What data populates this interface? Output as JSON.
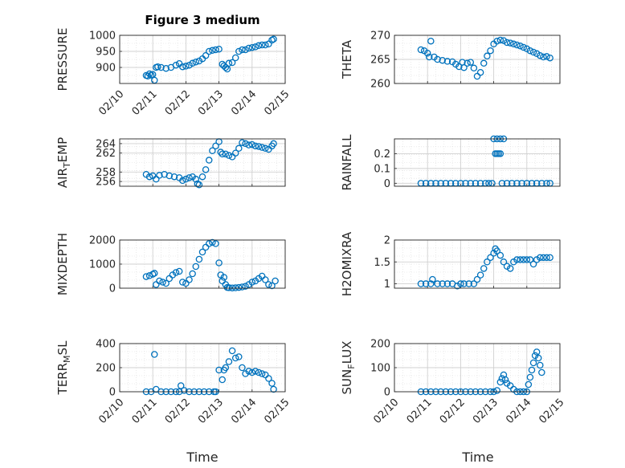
{
  "figure": {
    "title": "Figure 3 medium",
    "xlabel": "Time"
  },
  "chart_data": [
    {
      "type": "scatter",
      "ylabel_main": "PRESSURE",
      "ylabel_sub": "",
      "ylabel_tail": "",
      "ylim": [
        850,
        1000
      ],
      "yticks": [
        "900",
        "950",
        "1000"
      ],
      "ytick_values": [
        900,
        950,
        1000
      ],
      "xlim": [
        10,
        15
      ],
      "xticks": [
        "02/10",
        "02/11",
        "02/12",
        "02/13",
        "02/14",
        "02/15"
      ],
      "grid": true,
      "title": "Figure 3 medium",
      "series": [
        {
          "x": [
            10.8,
            10.85,
            10.9,
            10.95,
            11.0,
            11.05,
            11.1,
            11.15,
            11.25,
            11.4,
            11.55,
            11.7,
            11.8,
            11.9,
            12.0,
            12.1,
            12.2,
            12.3,
            12.4,
            12.5,
            12.6,
            12.7,
            12.8,
            12.9,
            13.0,
            13.1,
            13.15,
            13.2,
            13.25,
            13.3,
            13.4,
            13.5,
            13.6,
            13.7,
            13.8,
            13.9,
            14.0,
            14.1,
            14.2,
            14.3,
            14.4,
            14.5,
            14.6,
            14.65
          ],
          "y": [
            875,
            873,
            880,
            876,
            878,
            860,
            900,
            902,
            900,
            897,
            900,
            907,
            912,
            902,
            904,
            907,
            913,
            917,
            920,
            927,
            937,
            950,
            953,
            955,
            957,
            910,
            905,
            900,
            895,
            913,
            915,
            930,
            950,
            955,
            955,
            960,
            962,
            964,
            968,
            970,
            970,
            973,
            985,
            988
          ]
        }
      ]
    },
    {
      "type": "scatter",
      "ylabel_main": "THETA",
      "ylabel_sub": "",
      "ylabel_tail": "",
      "ylim": [
        260,
        270
      ],
      "yticks": [
        "260",
        "265",
        "270"
      ],
      "ytick_values": [
        260,
        265,
        270
      ],
      "xlim": [
        10,
        15
      ],
      "grid": true,
      "series": [
        {
          "x": [
            10.8,
            10.9,
            11.0,
            11.05,
            11.1,
            11.2,
            11.3,
            11.45,
            11.6,
            11.75,
            11.85,
            11.95,
            12.05,
            12.1,
            12.2,
            12.3,
            12.4,
            12.5,
            12.6,
            12.7,
            12.8,
            12.9,
            13.0,
            13.1,
            13.2,
            13.3,
            13.4,
            13.5,
            13.6,
            13.7,
            13.8,
            13.9,
            14.0,
            14.1,
            14.2,
            14.3,
            14.4,
            14.5,
            14.6,
            14.7
          ],
          "y": [
            267,
            266.8,
            266.3,
            265.5,
            268.8,
            265.5,
            265,
            264.8,
            264.6,
            264.5,
            264,
            263.5,
            264.4,
            263.3,
            264.2,
            264.4,
            263.2,
            261.5,
            262.3,
            264.2,
            265.7,
            266.8,
            268.2,
            268.8,
            269,
            268.9,
            268.5,
            268.4,
            268.2,
            268,
            267.8,
            267.5,
            267.2,
            266.8,
            266.5,
            266.2,
            265.8,
            265.5,
            265.6,
            265.3
          ]
        }
      ]
    },
    {
      "type": "scatter",
      "ylabel_main": "AIR",
      "ylabel_sub": "T",
      "ylabel_tail": "EMP",
      "ylim": [
        255,
        265
      ],
      "yticks": [
        "256",
        "258",
        "262",
        "264"
      ],
      "ytick_values": [
        256,
        258,
        262,
        264
      ],
      "xlim": [
        10,
        15
      ],
      "grid": true,
      "series": [
        {
          "x": [
            10.8,
            10.9,
            11.0,
            11.1,
            11.2,
            11.35,
            11.5,
            11.65,
            11.8,
            11.9,
            12.0,
            12.1,
            12.2,
            12.3,
            12.35,
            12.4,
            12.5,
            12.6,
            12.7,
            12.8,
            12.9,
            13.0,
            13.05,
            13.1,
            13.2,
            13.3,
            13.4,
            13.5,
            13.6,
            13.7,
            13.8,
            13.9,
            14.0,
            14.1,
            14.2,
            14.3,
            14.4,
            14.5,
            14.6,
            14.65
          ],
          "y": [
            257.5,
            257,
            257.2,
            256.5,
            257.3,
            257.5,
            257.2,
            257,
            256.8,
            256.2,
            256.5,
            256.8,
            257,
            256.5,
            255.5,
            255.3,
            257,
            258.5,
            260.5,
            262.5,
            263.5,
            264.4,
            262.2,
            261.8,
            261.8,
            261.5,
            261.2,
            262,
            263,
            264.2,
            264,
            263.7,
            263.8,
            263.5,
            263.4,
            263.2,
            263,
            262.8,
            263.5,
            264
          ]
        }
      ]
    },
    {
      "type": "scatter",
      "ylabel_main": "RAINFALL",
      "ylabel_sub": "",
      "ylabel_tail": "",
      "ylim": [
        -0.02,
        0.3
      ],
      "yticks": [
        "0",
        "0.1",
        "0.2"
      ],
      "ytick_values": [
        0,
        0.1,
        0.2
      ],
      "xlim": [
        10,
        15
      ],
      "grid": true,
      "series": [
        {
          "x": [
            10.8,
            10.95,
            11.1,
            11.25,
            11.4,
            11.55,
            11.7,
            11.85,
            12.0,
            12.15,
            12.3,
            12.45,
            12.6,
            12.75,
            12.85,
            12.95,
            13.0,
            13.05,
            13.1,
            13.1,
            13.15,
            13.2,
            13.2,
            13.25,
            13.3,
            13.4,
            13.55,
            13.7,
            13.85,
            14.0,
            14.15,
            14.3,
            14.45,
            14.6,
            14.7
          ],
          "y": [
            0,
            0,
            0,
            0,
            0,
            0,
            0,
            0,
            0,
            0,
            0,
            0,
            0,
            0,
            0,
            0,
            0.3,
            0.2,
            0.2,
            0.3,
            0.2,
            0.3,
            0.2,
            0,
            0.3,
            0,
            0,
            0,
            0,
            0,
            0,
            0,
            0,
            0,
            0
          ]
        }
      ]
    },
    {
      "type": "scatter",
      "ylabel_main": "MIXDEPTH",
      "ylabel_sub": "",
      "ylabel_tail": "",
      "ylim": [
        0,
        2000
      ],
      "yticks": [
        "0",
        "1000",
        "2000"
      ],
      "ytick_values": [
        0,
        1000,
        2000
      ],
      "xlim": [
        10,
        15
      ],
      "grid": true,
      "series": [
        {
          "x": [
            10.8,
            10.9,
            11.0,
            11.05,
            11.1,
            11.2,
            11.3,
            11.4,
            11.5,
            11.6,
            11.7,
            11.8,
            11.9,
            12.0,
            12.1,
            12.2,
            12.3,
            12.4,
            12.5,
            12.6,
            12.7,
            12.8,
            12.9,
            13.0,
            13.05,
            13.1,
            13.15,
            13.2,
            13.25,
            13.3,
            13.4,
            13.5,
            13.6,
            13.7,
            13.8,
            13.9,
            14.0,
            14.1,
            14.2,
            14.3,
            14.4,
            14.5,
            14.6,
            14.7
          ],
          "y": [
            480,
            520,
            580,
            620,
            150,
            300,
            250,
            200,
            400,
            550,
            650,
            700,
            250,
            200,
            350,
            600,
            900,
            1200,
            1500,
            1700,
            1850,
            1900,
            1850,
            1050,
            550,
            300,
            450,
            150,
            30,
            20,
            10,
            15,
            30,
            50,
            80,
            150,
            250,
            300,
            400,
            500,
            350,
            150,
            100,
            300
          ]
        }
      ]
    },
    {
      "type": "scatter",
      "ylabel_main": "H2OMIXRA",
      "ylabel_sub": "",
      "ylabel_tail": "",
      "ylim": [
        0.9,
        2
      ],
      "yticks": [
        "1",
        "1.5",
        "2"
      ],
      "ytick_values": [
        1,
        1.5,
        2
      ],
      "xlim": [
        10,
        15
      ],
      "grid": true,
      "series": [
        {
          "x": [
            10.8,
            10.95,
            11.1,
            11.15,
            11.3,
            11.45,
            11.6,
            11.75,
            11.9,
            12.0,
            12.1,
            12.25,
            12.4,
            12.5,
            12.6,
            12.7,
            12.8,
            12.9,
            13.0,
            13.05,
            13.1,
            13.2,
            13.3,
            13.4,
            13.5,
            13.6,
            13.7,
            13.8,
            13.9,
            14.0,
            14.1,
            14.2,
            14.3,
            14.4,
            14.5,
            14.6,
            14.7
          ],
          "y": [
            1,
            1,
            1,
            1.1,
            1,
            1,
            1,
            1,
            0.95,
            1,
            1,
            1,
            1,
            1.1,
            1.2,
            1.35,
            1.5,
            1.6,
            1.7,
            1.8,
            1.75,
            1.65,
            1.5,
            1.4,
            1.35,
            1.5,
            1.55,
            1.55,
            1.55,
            1.55,
            1.55,
            1.45,
            1.55,
            1.6,
            1.6,
            1.6,
            1.6
          ]
        }
      ]
    },
    {
      "type": "scatter",
      "ylabel_main": "TERR",
      "ylabel_sub": "M",
      "ylabel_tail": "SL",
      "ylim": [
        0,
        400
      ],
      "yticks": [
        "0",
        "200",
        "400"
      ],
      "ytick_values": [
        0,
        200,
        400
      ],
      "xlim": [
        10,
        15
      ],
      "xticks": [
        "02/10",
        "02/11",
        "02/12",
        "02/13",
        "02/14",
        "02/15"
      ],
      "grid": true,
      "series": [
        {
          "x": [
            10.8,
            10.95,
            11.05,
            11.1,
            11.25,
            11.4,
            11.55,
            11.7,
            11.8,
            11.85,
            11.95,
            12.1,
            12.25,
            12.4,
            12.55,
            12.7,
            12.85,
            12.9,
            13.0,
            13.1,
            13.15,
            13.2,
            13.3,
            13.4,
            13.5,
            13.6,
            13.7,
            13.8,
            13.9,
            14.0,
            14.1,
            14.2,
            14.3,
            14.4,
            14.5,
            14.6,
            14.65
          ],
          "y": [
            0,
            0,
            310,
            20,
            0,
            0,
            0,
            0,
            0,
            50,
            10,
            0,
            0,
            0,
            0,
            0,
            0,
            0,
            180,
            100,
            180,
            200,
            250,
            340,
            280,
            290,
            200,
            150,
            170,
            160,
            170,
            160,
            150,
            140,
            110,
            70,
            20
          ]
        }
      ]
    },
    {
      "type": "scatter",
      "ylabel_main": "SUN",
      "ylabel_sub": "F",
      "ylabel_tail": "LUX",
      "ylim": [
        0,
        200
      ],
      "yticks": [
        "0",
        "100",
        "200"
      ],
      "ytick_values": [
        0,
        100,
        200
      ],
      "xlim": [
        10,
        15
      ],
      "xticks": [
        "02/10",
        "02/11",
        "02/12",
        "02/13",
        "02/14",
        "02/15"
      ],
      "grid": true,
      "series": [
        {
          "x": [
            10.8,
            10.95,
            11.1,
            11.25,
            11.4,
            11.55,
            11.7,
            11.85,
            12.0,
            12.15,
            12.3,
            12.45,
            12.6,
            12.75,
            12.9,
            13.0,
            13.1,
            13.2,
            13.25,
            13.3,
            13.35,
            13.4,
            13.5,
            13.6,
            13.7,
            13.8,
            13.9,
            14.0,
            14.05,
            14.1,
            14.15,
            14.2,
            14.25,
            14.3,
            14.35,
            14.4,
            14.45
          ],
          "y": [
            0,
            0,
            0,
            0,
            0,
            0,
            0,
            0,
            0,
            0,
            0,
            0,
            0,
            0,
            0,
            0,
            5,
            40,
            55,
            70,
            50,
            35,
            25,
            10,
            0,
            0,
            0,
            0,
            30,
            60,
            90,
            120,
            150,
            165,
            140,
            110,
            80
          ]
        }
      ]
    }
  ],
  "colors": {
    "marker": "#0072BD",
    "grid": "#dcdcdc",
    "axis": "#262626"
  }
}
